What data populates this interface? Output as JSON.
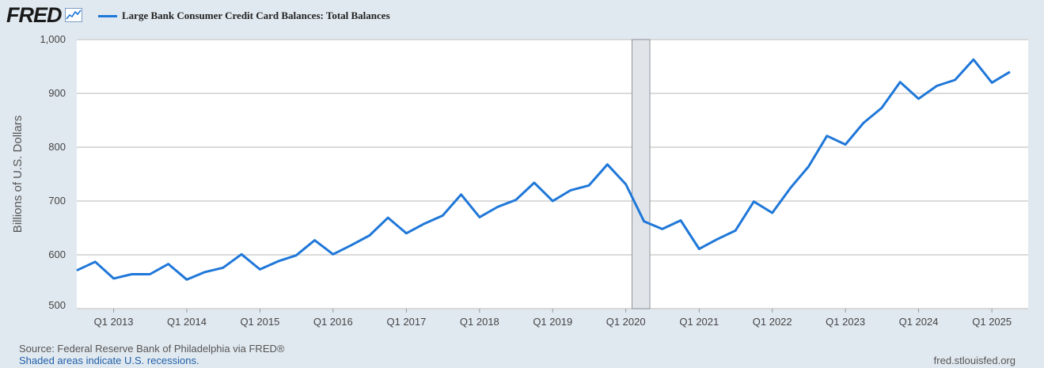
{
  "header": {
    "logo_text": "FRED",
    "logo_icon": "line-chart-icon",
    "legend_label": "Large Bank Consumer Credit Card Balances: Total Balances",
    "series_color": "#1f77d8"
  },
  "chart_data": {
    "type": "line",
    "title": "",
    "ylabel": "Billions of U.S. Dollars",
    "xlabel": "",
    "ylim": [
      500,
      1000
    ],
    "yticks": [
      500,
      600,
      700,
      800,
      900,
      1000
    ],
    "ytick_labels": [
      "500",
      "600",
      "700",
      "800",
      "900",
      "1,000"
    ],
    "xticks": [
      "Q1 2013",
      "Q1 2014",
      "Q1 2015",
      "Q1 2016",
      "Q1 2017",
      "Q1 2018",
      "Q1 2019",
      "Q1 2020",
      "Q1 2021",
      "Q1 2022",
      "Q1 2023",
      "Q1 2024",
      "Q1 2025"
    ],
    "xlim": [
      "2012-07-01",
      "2025-07-01"
    ],
    "grid": true,
    "legend": "top-left",
    "recessions": [
      {
        "start": "2020-02-01",
        "end": "2020-04-30"
      }
    ],
    "series": [
      {
        "name": "Large Bank Consumer Credit Card Balances: Total Balances",
        "x": [
          "2012-07-01",
          "2012-10-01",
          "2013-01-01",
          "2013-04-01",
          "2013-07-01",
          "2013-10-01",
          "2014-01-01",
          "2014-04-01",
          "2014-07-01",
          "2014-10-01",
          "2015-01-01",
          "2015-04-01",
          "2015-07-01",
          "2015-10-01",
          "2016-01-01",
          "2016-04-01",
          "2016-07-01",
          "2016-10-01",
          "2017-01-01",
          "2017-04-01",
          "2017-07-01",
          "2017-10-01",
          "2018-01-01",
          "2018-04-01",
          "2018-07-01",
          "2018-10-01",
          "2019-01-01",
          "2019-04-01",
          "2019-07-01",
          "2019-10-01",
          "2020-01-01",
          "2020-04-01",
          "2020-07-01",
          "2020-10-01",
          "2021-01-01",
          "2021-04-01",
          "2021-07-01",
          "2021-10-01",
          "2022-01-01",
          "2022-04-01",
          "2022-07-01",
          "2022-10-01",
          "2023-01-01",
          "2023-04-01",
          "2023-07-01",
          "2023-10-01",
          "2024-01-01",
          "2024-04-01",
          "2024-07-01",
          "2024-10-01",
          "2025-01-01",
          "2025-04-01"
        ],
        "values": [
          571,
          587,
          556,
          564,
          564,
          583,
          554,
          568,
          576,
          601,
          573,
          588,
          599,
          627,
          601,
          618,
          636,
          669,
          640,
          658,
          673,
          712,
          670,
          689,
          702,
          734,
          700,
          720,
          729,
          768,
          731,
          662,
          648,
          664,
          611,
          629,
          645,
          699,
          678,
          724,
          764,
          821,
          805,
          845,
          873,
          921,
          890,
          914,
          925,
          963,
          920,
          940
        ]
      }
    ]
  },
  "footer": {
    "source": "Source: Federal Reserve Bank of Philadelphia via FRED®",
    "recession_note": "Shaded areas indicate U.S. recessions.",
    "site": "fred.stlouisfed.org"
  }
}
